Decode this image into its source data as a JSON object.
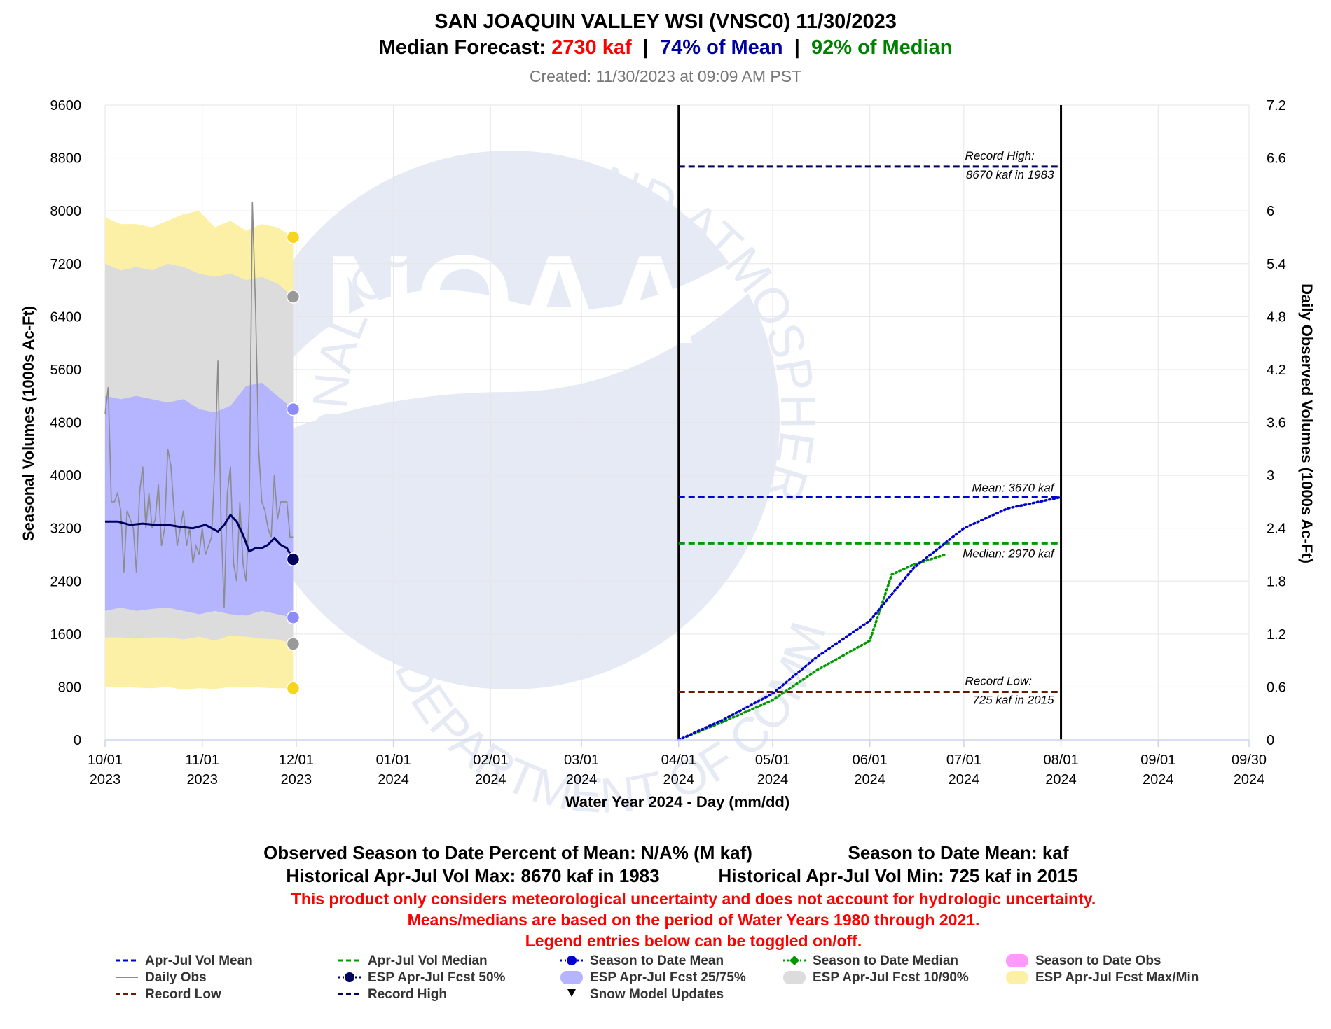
{
  "title": {
    "line1": "SAN JOAQUIN VALLEY WSI (VNSC0)  11/30/2023",
    "line2_label": "Median Forecast: ",
    "line2_forecast": "2730 kaf",
    "line2_sep1": "  |  ",
    "line2_pct_mean": "74% of Mean",
    "line2_sep2": "  |  ",
    "line2_pct_median": "92% of Median",
    "created": "Created: 11/30/2023 at 09:09 AM PST"
  },
  "colors": {
    "forecast": "#ff0000",
    "mean": "#0000a0",
    "median": "#008000",
    "band_25_75": "#b4b4ff",
    "band_10_90": "#dcdcdc",
    "band_max_min": "#fbf0a6",
    "daily_obs": "#8c8c8c",
    "fcst_50": "#000060",
    "record_high": "#000060",
    "record_low": "#661a00",
    "std_mean": "#0000cc",
    "std_median": "#009900"
  },
  "watermark": {
    "logo_text": "NOAA",
    "ring_text": "NATIONAL OCEANIC AND ATMOSPHERIC ADMINISTRATION",
    "ring_text_bottom": "U.S. DEPARTMENT OF COMMERCE"
  },
  "chart_data": {
    "type": "line",
    "x_axis": {
      "title": "Water Year 2024 - Day (mm/dd)",
      "tick_labels": [
        {
          "date": "2023-10-01",
          "top": "10/01",
          "bottom": "2023"
        },
        {
          "date": "2023-11-01",
          "top": "11/01",
          "bottom": "2023"
        },
        {
          "date": "2023-12-01",
          "top": "12/01",
          "bottom": "2023"
        },
        {
          "date": "2024-01-01",
          "top": "01/01",
          "bottom": "2024"
        },
        {
          "date": "2024-02-01",
          "top": "02/01",
          "bottom": "2024"
        },
        {
          "date": "2024-03-01",
          "top": "03/01",
          "bottom": "2024"
        },
        {
          "date": "2024-04-01",
          "top": "04/01",
          "bottom": "2024"
        },
        {
          "date": "2024-05-01",
          "top": "05/01",
          "bottom": "2024"
        },
        {
          "date": "2024-06-01",
          "top": "06/01",
          "bottom": "2024"
        },
        {
          "date": "2024-07-01",
          "top": "07/01",
          "bottom": "2024"
        },
        {
          "date": "2024-08-01",
          "top": "08/01",
          "bottom": "2024"
        },
        {
          "date": "2024-09-01",
          "top": "09/01",
          "bottom": "2024"
        },
        {
          "date": "2024-09-30",
          "top": "09/30",
          "bottom": "2024"
        }
      ],
      "range": [
        "2023-10-01",
        "2024-09-30"
      ]
    },
    "y_axis_left": {
      "title": "Seasonal Volumes (1000s Ac-Ft)",
      "range": [
        0,
        9600
      ],
      "ticks": [
        "0",
        "800",
        "1600",
        "2400",
        "3200",
        "4000",
        "4800",
        "5600",
        "6400",
        "7200",
        "8000",
        "8800",
        "9600"
      ]
    },
    "y_axis_right": {
      "title": "Daily Observed Volumes (1000s Ac-Ft)",
      "range": [
        0,
        7.2
      ],
      "ticks": [
        "0",
        "0.6",
        "1.2",
        "1.8",
        "2.4",
        "3",
        "3.6",
        "4.2",
        "4.8",
        "5.4",
        "6",
        "6.6",
        "7.2"
      ]
    },
    "grid": true,
    "season_window": [
      "2024-04-01",
      "2024-08-01"
    ],
    "reference_lines": [
      {
        "name": "Record High",
        "value": 8670,
        "label_line1": "Record High:",
        "label_line2": "8670 kaf in 1983"
      },
      {
        "name": "Mean",
        "value": 3670,
        "label_line1": "Mean: 3670 kaf"
      },
      {
        "name": "Median",
        "value": 2970,
        "label_line1": "Median: 2970 kaf"
      },
      {
        "name": "Record Low",
        "value": 725,
        "label_line1": "Record Low:",
        "label_line2": "725 kaf in 2015"
      }
    ],
    "bands": {
      "x": [
        "2023-10-01",
        "2023-10-06",
        "2023-10-11",
        "2023-10-16",
        "2023-10-21",
        "2023-10-26",
        "2023-10-31",
        "2023-11-05",
        "2023-11-10",
        "2023-11-15",
        "2023-11-20",
        "2023-11-25",
        "2023-11-30"
      ],
      "max": [
        7900,
        7800,
        7800,
        7750,
        7850,
        7950,
        8000,
        7750,
        7850,
        7700,
        7800,
        7750,
        7600
      ],
      "p90": [
        7200,
        7100,
        7150,
        7100,
        7200,
        7150,
        7050,
        7000,
        7050,
        6950,
        7000,
        6900,
        6700
      ],
      "p75": [
        5200,
        5150,
        5200,
        5150,
        5100,
        5150,
        5000,
        4950,
        5050,
        5350,
        5400,
        5200,
        5000
      ],
      "p25": [
        1950,
        2000,
        1950,
        1980,
        2000,
        1950,
        1900,
        1950,
        1900,
        1880,
        1950,
        1900,
        1850
      ],
      "p10": [
        1550,
        1550,
        1530,
        1550,
        1550,
        1520,
        1560,
        1500,
        1580,
        1560,
        1530,
        1520,
        1450
      ],
      "min": [
        800,
        800,
        790,
        780,
        800,
        760,
        780,
        770,
        800,
        800,
        790,
        780,
        780
      ]
    },
    "esp_fcst_50": {
      "x": [
        "2023-10-01",
        "2023-10-05",
        "2023-10-09",
        "2023-10-13",
        "2023-10-17",
        "2023-10-21",
        "2023-10-25",
        "2023-10-29",
        "2023-11-02",
        "2023-11-06",
        "2023-11-08",
        "2023-11-10",
        "2023-11-12",
        "2023-11-14",
        "2023-11-16",
        "2023-11-18",
        "2023-11-20",
        "2023-11-22",
        "2023-11-24",
        "2023-11-26",
        "2023-11-28",
        "2023-11-30"
      ],
      "values": [
        3300,
        3300,
        3250,
        3270,
        3250,
        3250,
        3220,
        3200,
        3250,
        3150,
        3250,
        3400,
        3300,
        3100,
        2850,
        2900,
        2900,
        2950,
        3050,
        2950,
        2900,
        2730
      ]
    },
    "daily_obs": {
      "x": [
        "2023-10-01",
        "2023-10-02",
        "2023-10-03",
        "2023-10-04",
        "2023-10-05",
        "2023-10-06",
        "2023-10-07",
        "2023-10-08",
        "2023-10-09",
        "2023-10-10",
        "2023-10-11",
        "2023-10-12",
        "2023-10-13",
        "2023-10-14",
        "2023-10-15",
        "2023-10-16",
        "2023-10-17",
        "2023-10-18",
        "2023-10-19",
        "2023-10-20",
        "2023-10-21",
        "2023-10-22",
        "2023-10-23",
        "2023-10-24",
        "2023-10-25",
        "2023-10-26",
        "2023-10-27",
        "2023-10-28",
        "2023-10-29",
        "2023-10-30",
        "2023-10-31",
        "2023-11-01",
        "2023-11-02",
        "2023-11-03",
        "2023-11-04",
        "2023-11-05",
        "2023-11-06",
        "2023-11-07",
        "2023-11-08",
        "2023-11-09",
        "2023-11-10",
        "2023-11-11",
        "2023-11-12",
        "2023-11-13",
        "2023-11-14",
        "2023-11-15",
        "2023-11-16",
        "2023-11-17",
        "2023-11-18",
        "2023-11-19",
        "2023-11-20",
        "2023-11-21",
        "2023-11-22",
        "2023-11-23",
        "2023-11-24",
        "2023-11-25",
        "2023-11-26",
        "2023-11-27",
        "2023-11-28",
        "2023-11-29",
        "2023-11-30"
      ],
      "values": [
        3.7,
        4.0,
        2.7,
        2.7,
        2.8,
        2.6,
        1.9,
        2.6,
        2.5,
        2.4,
        1.9,
        2.8,
        3.1,
        2.4,
        2.8,
        2.4,
        2.5,
        2.9,
        2.2,
        2.4,
        3.3,
        3.1,
        2.6,
        2.2,
        2.4,
        2.6,
        2.2,
        2.4,
        2.0,
        2.2,
        2.1,
        2.4,
        2.1,
        2.2,
        2.3,
        3.1,
        4.3,
        2.5,
        1.5,
        2.8,
        3.1,
        2.0,
        1.8,
        2.7,
        2.0,
        1.8,
        2.6,
        6.1,
        4.9,
        3.3,
        2.7,
        2.6,
        2.4,
        2.3,
        3.0,
        2.5,
        2.7,
        2.7,
        2.7,
        2.3,
        2.3
      ]
    },
    "season_to_date_mean": {
      "x": [
        "2024-04-01",
        "2024-04-15",
        "2024-05-01",
        "2024-05-15",
        "2024-06-01",
        "2024-06-15",
        "2024-07-01",
        "2024-07-15",
        "2024-08-01"
      ],
      "values": [
        0,
        300,
        700,
        1250,
        1800,
        2600,
        3200,
        3500,
        3670
      ]
    },
    "season_to_date_median": {
      "x": [
        "2024-04-01",
        "2024-04-15",
        "2024-05-01",
        "2024-05-15",
        "2024-06-01",
        "2024-06-08",
        "2024-06-15",
        "2024-06-25"
      ],
      "values": [
        0,
        270,
        600,
        1050,
        1500,
        2500,
        2650,
        2800
      ]
    },
    "end_markers": [
      {
        "name": "Max",
        "value": 7600,
        "color": "#f5d51e"
      },
      {
        "name": "90%",
        "value": 6700,
        "color": "#999999"
      },
      {
        "name": "75%",
        "value": 5000,
        "color": "#8c8cff"
      },
      {
        "name": "50%",
        "value": 2730,
        "color": "#000060"
      },
      {
        "name": "25%",
        "value": 1850,
        "color": "#8c8cff"
      },
      {
        "name": "10%",
        "value": 1450,
        "color": "#999999"
      },
      {
        "name": "Min",
        "value": 780,
        "color": "#f5d51e"
      }
    ]
  },
  "footer": {
    "line1a": "Observed Season to Date Percent of Mean: N/A% (M kaf)",
    "line1b": "Season to Date Mean:  kaf",
    "line2a": "Historical Apr-Jul Vol Max: 8670 kaf in 1983",
    "line2b": "Historical Apr-Jul Vol Min: 725 kaf in 2015",
    "note1": "This product only considers meteorological uncertainty and does not account for hydrologic uncertainty.",
    "note2": "Means/medians are based on the period of Water Years 1980 through 2021.",
    "note3": "Legend entries below can be toggled on/off."
  },
  "legend": [
    {
      "label": "Apr-Jul Vol Mean",
      "icon": "dashed-line",
      "color": "#0000cc"
    },
    {
      "label": "Apr-Jul Vol Median",
      "icon": "dashed-line",
      "color": "#009900"
    },
    {
      "label": "Season to Date Mean",
      "icon": "dotted-line-circle",
      "color": "#0000cc"
    },
    {
      "label": "Season to Date Median",
      "icon": "dotted-line-diamond",
      "color": "#009900"
    },
    {
      "label": "Season to Date Obs",
      "icon": "area-swatch",
      "color": "#ff99ff"
    },
    {
      "label": "Daily Obs",
      "icon": "solid-line",
      "color": "#8c8c8c"
    },
    {
      "label": "ESP Apr-Jul Fcst 50%",
      "icon": "dotted-line-circle",
      "color": "#000060"
    },
    {
      "label": "ESP Apr-Jul Fcst 25/75%",
      "icon": "area-swatch",
      "color": "#b4b4ff"
    },
    {
      "label": "ESP Apr-Jul Fcst 10/90%",
      "icon": "area-swatch",
      "color": "#dcdcdc"
    },
    {
      "label": "ESP Apr-Jul Fcst Max/Min",
      "icon": "area-swatch",
      "color": "#fbf0a6"
    },
    {
      "label": "Record Low",
      "icon": "dashed-line",
      "color": "#661a00"
    },
    {
      "label": "Record High",
      "icon": "dashed-line",
      "color": "#000060"
    },
    {
      "label": "Snow Model Updates",
      "icon": "triangle-down",
      "color": "#000000"
    }
  ]
}
